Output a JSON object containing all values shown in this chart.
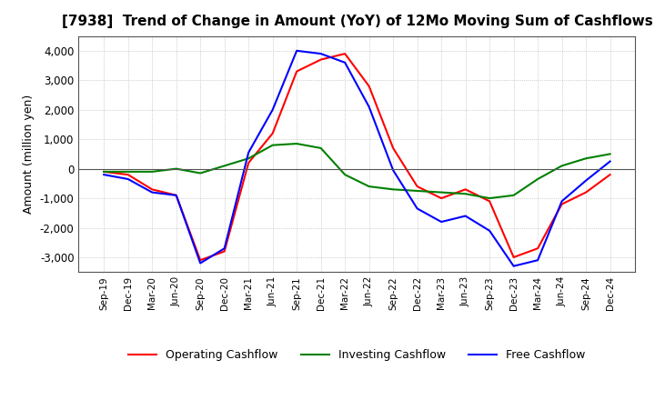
{
  "title": "[7938]  Trend of Change in Amount (YoY) of 12Mo Moving Sum of Cashflows",
  "ylabel": "Amount (million yen)",
  "x_labels": [
    "Sep-19",
    "Dec-19",
    "Mar-20",
    "Jun-20",
    "Sep-20",
    "Dec-20",
    "Mar-21",
    "Jun-21",
    "Sep-21",
    "Dec-21",
    "Mar-22",
    "Jun-22",
    "Sep-22",
    "Dec-22",
    "Mar-23",
    "Jun-23",
    "Sep-23",
    "Dec-23",
    "Mar-24",
    "Jun-24",
    "Sep-24",
    "Dec-24"
  ],
  "operating": [
    -100,
    -200,
    -700,
    -900,
    -3100,
    -2800,
    200,
    1200,
    3300,
    3700,
    3900,
    2800,
    700,
    -600,
    -1000,
    -700,
    -1100,
    -3000,
    -2700,
    -1200,
    -800,
    -200
  ],
  "investing": [
    -100,
    -100,
    -100,
    0,
    -150,
    100,
    350,
    800,
    850,
    700,
    -200,
    -600,
    -700,
    -750,
    -800,
    -850,
    -1000,
    -900,
    -350,
    100,
    350,
    500
  ],
  "free": [
    -200,
    -350,
    -800,
    -900,
    -3200,
    -2700,
    550,
    2000,
    4000,
    3900,
    3600,
    2100,
    -50,
    -1350,
    -1800,
    -1600,
    -2100,
    -3300,
    -3100,
    -1100,
    -400,
    250
  ],
  "operating_color": "#ff0000",
  "investing_color": "#008000",
  "free_color": "#0000ff",
  "ylim": [
    -3500,
    4500
  ],
  "yticks": [
    -3000,
    -2000,
    -1000,
    0,
    1000,
    2000,
    3000,
    4000
  ],
  "background_color": "#ffffff",
  "grid_color": "#aaaaaa",
  "title_fontsize": 11,
  "axis_fontsize": 9,
  "legend_fontsize": 9,
  "linewidth": 1.5
}
